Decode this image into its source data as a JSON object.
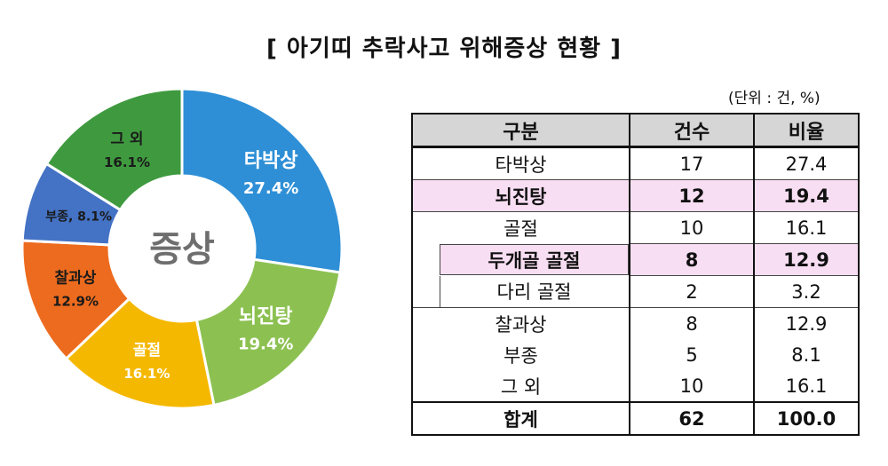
{
  "title": "[ 아기띠 추락사고 위해증상 현황 ]",
  "unit_note": "(단위 : 건, %)",
  "chart_data": {
    "type": "pie",
    "center_label": "증상",
    "slices": [
      {
        "label": "타박상",
        "value": 27.4,
        "value_text": "27.4%",
        "color": "#2e8fd6",
        "text_color": "#ffffff"
      },
      {
        "label": "뇌진탕",
        "value": 19.4,
        "value_text": "19.4%",
        "color": "#8cc152",
        "text_color": "#ffffff"
      },
      {
        "label": "골절",
        "value": 16.1,
        "value_text": "16.1%",
        "color": "#f5b800",
        "text_color": "#ffffff"
      },
      {
        "label": "찰과상",
        "value": 12.9,
        "value_text": "12.9%",
        "color": "#ed6b1e",
        "text_color": "#1a1a1a"
      },
      {
        "label": "부종,",
        "value": 8.1,
        "value_text": "8.1%",
        "color": "#4472c4",
        "text_color": "#1a1a1a"
      },
      {
        "label": "그 외",
        "value": 16.1,
        "value_text": "16.1%",
        "color": "#3f9a3f",
        "text_color": "#1a1a1a"
      }
    ]
  },
  "table": {
    "headers": [
      "구분",
      "건수",
      "비율"
    ],
    "rows": [
      {
        "label": "타박상",
        "count": "17",
        "ratio": "27.4"
      },
      {
        "label": "뇌진탕",
        "count": "12",
        "ratio": "19.4"
      },
      {
        "label": "골절",
        "count": "10",
        "ratio": "16.1"
      },
      {
        "label": "두개골 골절",
        "count": "8",
        "ratio": "12.9"
      },
      {
        "label": "다리 골절",
        "count": "2",
        "ratio": "3.2"
      },
      {
        "label": "찰과상",
        "count": "8",
        "ratio": "12.9"
      },
      {
        "label": "부종",
        "count": "5",
        "ratio": "8.1"
      },
      {
        "label": "그 외",
        "count": "10",
        "ratio": "16.1"
      },
      {
        "label": "합계",
        "count": "62",
        "ratio": "100.0"
      }
    ]
  }
}
